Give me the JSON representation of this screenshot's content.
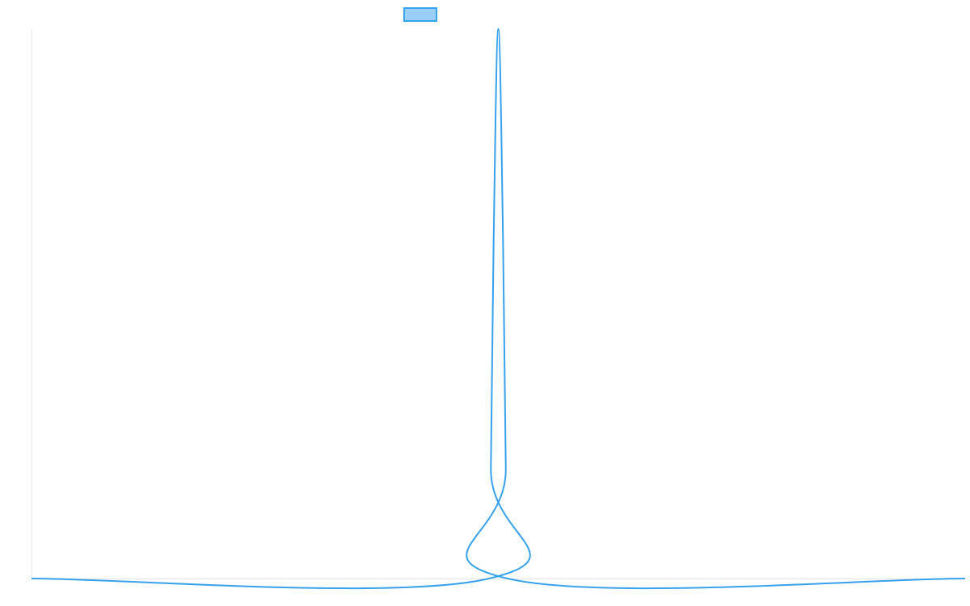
{
  "chart_data": {
    "type": "line",
    "title": "",
    "xlabel": "",
    "ylabel": "",
    "legend": {
      "placement": "top-center",
      "entries": [
        {
          "name": "",
          "color": "#36a2eb",
          "fill": "#9ad0f5"
        }
      ]
    },
    "grid": false,
    "xlim": [
      0,
      1
    ],
    "ylim": [
      0,
      1
    ],
    "series": [
      {
        "name": "",
        "color": "#36a2eb",
        "x": [
          0,
          0.49,
          0.492,
          0.495,
          0.5,
          0.505,
          0.508,
          0.51,
          1
        ],
        "y": [
          0,
          0,
          0.2,
          0.62,
          1,
          0.62,
          0.2,
          0,
          0
        ]
      }
    ]
  }
}
